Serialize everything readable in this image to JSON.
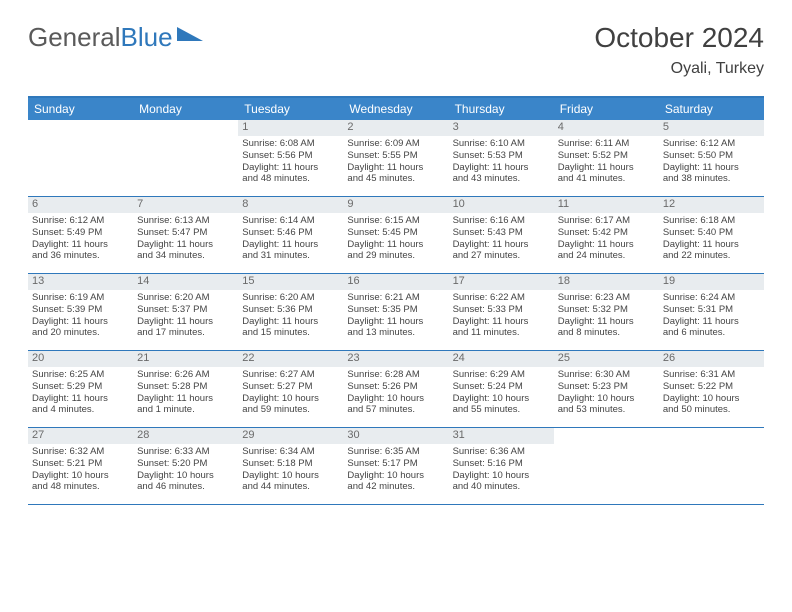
{
  "brand": {
    "part1": "General",
    "part2": "Blue"
  },
  "title": "October 2024",
  "location": "Oyali, Turkey",
  "colors": {
    "header_bg": "#3a85c9",
    "border": "#2f78bb",
    "daynum_bg": "#e8ecef",
    "text": "#444444"
  },
  "day_names": [
    "Sunday",
    "Monday",
    "Tuesday",
    "Wednesday",
    "Thursday",
    "Friday",
    "Saturday"
  ],
  "weeks": [
    [
      null,
      null,
      {
        "n": "1",
        "sr": "Sunrise: 6:08 AM",
        "ss": "Sunset: 5:56 PM",
        "d1": "Daylight: 11 hours",
        "d2": "and 48 minutes."
      },
      {
        "n": "2",
        "sr": "Sunrise: 6:09 AM",
        "ss": "Sunset: 5:55 PM",
        "d1": "Daylight: 11 hours",
        "d2": "and 45 minutes."
      },
      {
        "n": "3",
        "sr": "Sunrise: 6:10 AM",
        "ss": "Sunset: 5:53 PM",
        "d1": "Daylight: 11 hours",
        "d2": "and 43 minutes."
      },
      {
        "n": "4",
        "sr": "Sunrise: 6:11 AM",
        "ss": "Sunset: 5:52 PM",
        "d1": "Daylight: 11 hours",
        "d2": "and 41 minutes."
      },
      {
        "n": "5",
        "sr": "Sunrise: 6:12 AM",
        "ss": "Sunset: 5:50 PM",
        "d1": "Daylight: 11 hours",
        "d2": "and 38 minutes."
      }
    ],
    [
      {
        "n": "6",
        "sr": "Sunrise: 6:12 AM",
        "ss": "Sunset: 5:49 PM",
        "d1": "Daylight: 11 hours",
        "d2": "and 36 minutes."
      },
      {
        "n": "7",
        "sr": "Sunrise: 6:13 AM",
        "ss": "Sunset: 5:47 PM",
        "d1": "Daylight: 11 hours",
        "d2": "and 34 minutes."
      },
      {
        "n": "8",
        "sr": "Sunrise: 6:14 AM",
        "ss": "Sunset: 5:46 PM",
        "d1": "Daylight: 11 hours",
        "d2": "and 31 minutes."
      },
      {
        "n": "9",
        "sr": "Sunrise: 6:15 AM",
        "ss": "Sunset: 5:45 PM",
        "d1": "Daylight: 11 hours",
        "d2": "and 29 minutes."
      },
      {
        "n": "10",
        "sr": "Sunrise: 6:16 AM",
        "ss": "Sunset: 5:43 PM",
        "d1": "Daylight: 11 hours",
        "d2": "and 27 minutes."
      },
      {
        "n": "11",
        "sr": "Sunrise: 6:17 AM",
        "ss": "Sunset: 5:42 PM",
        "d1": "Daylight: 11 hours",
        "d2": "and 24 minutes."
      },
      {
        "n": "12",
        "sr": "Sunrise: 6:18 AM",
        "ss": "Sunset: 5:40 PM",
        "d1": "Daylight: 11 hours",
        "d2": "and 22 minutes."
      }
    ],
    [
      {
        "n": "13",
        "sr": "Sunrise: 6:19 AM",
        "ss": "Sunset: 5:39 PM",
        "d1": "Daylight: 11 hours",
        "d2": "and 20 minutes."
      },
      {
        "n": "14",
        "sr": "Sunrise: 6:20 AM",
        "ss": "Sunset: 5:37 PM",
        "d1": "Daylight: 11 hours",
        "d2": "and 17 minutes."
      },
      {
        "n": "15",
        "sr": "Sunrise: 6:20 AM",
        "ss": "Sunset: 5:36 PM",
        "d1": "Daylight: 11 hours",
        "d2": "and 15 minutes."
      },
      {
        "n": "16",
        "sr": "Sunrise: 6:21 AM",
        "ss": "Sunset: 5:35 PM",
        "d1": "Daylight: 11 hours",
        "d2": "and 13 minutes."
      },
      {
        "n": "17",
        "sr": "Sunrise: 6:22 AM",
        "ss": "Sunset: 5:33 PM",
        "d1": "Daylight: 11 hours",
        "d2": "and 11 minutes."
      },
      {
        "n": "18",
        "sr": "Sunrise: 6:23 AM",
        "ss": "Sunset: 5:32 PM",
        "d1": "Daylight: 11 hours",
        "d2": "and 8 minutes."
      },
      {
        "n": "19",
        "sr": "Sunrise: 6:24 AM",
        "ss": "Sunset: 5:31 PM",
        "d1": "Daylight: 11 hours",
        "d2": "and 6 minutes."
      }
    ],
    [
      {
        "n": "20",
        "sr": "Sunrise: 6:25 AM",
        "ss": "Sunset: 5:29 PM",
        "d1": "Daylight: 11 hours",
        "d2": "and 4 minutes."
      },
      {
        "n": "21",
        "sr": "Sunrise: 6:26 AM",
        "ss": "Sunset: 5:28 PM",
        "d1": "Daylight: 11 hours",
        "d2": "and 1 minute."
      },
      {
        "n": "22",
        "sr": "Sunrise: 6:27 AM",
        "ss": "Sunset: 5:27 PM",
        "d1": "Daylight: 10 hours",
        "d2": "and 59 minutes."
      },
      {
        "n": "23",
        "sr": "Sunrise: 6:28 AM",
        "ss": "Sunset: 5:26 PM",
        "d1": "Daylight: 10 hours",
        "d2": "and 57 minutes."
      },
      {
        "n": "24",
        "sr": "Sunrise: 6:29 AM",
        "ss": "Sunset: 5:24 PM",
        "d1": "Daylight: 10 hours",
        "d2": "and 55 minutes."
      },
      {
        "n": "25",
        "sr": "Sunrise: 6:30 AM",
        "ss": "Sunset: 5:23 PM",
        "d1": "Daylight: 10 hours",
        "d2": "and 53 minutes."
      },
      {
        "n": "26",
        "sr": "Sunrise: 6:31 AM",
        "ss": "Sunset: 5:22 PM",
        "d1": "Daylight: 10 hours",
        "d2": "and 50 minutes."
      }
    ],
    [
      {
        "n": "27",
        "sr": "Sunrise: 6:32 AM",
        "ss": "Sunset: 5:21 PM",
        "d1": "Daylight: 10 hours",
        "d2": "and 48 minutes."
      },
      {
        "n": "28",
        "sr": "Sunrise: 6:33 AM",
        "ss": "Sunset: 5:20 PM",
        "d1": "Daylight: 10 hours",
        "d2": "and 46 minutes."
      },
      {
        "n": "29",
        "sr": "Sunrise: 6:34 AM",
        "ss": "Sunset: 5:18 PM",
        "d1": "Daylight: 10 hours",
        "d2": "and 44 minutes."
      },
      {
        "n": "30",
        "sr": "Sunrise: 6:35 AM",
        "ss": "Sunset: 5:17 PM",
        "d1": "Daylight: 10 hours",
        "d2": "and 42 minutes."
      },
      {
        "n": "31",
        "sr": "Sunrise: 6:36 AM",
        "ss": "Sunset: 5:16 PM",
        "d1": "Daylight: 10 hours",
        "d2": "and 40 minutes."
      },
      null,
      null
    ]
  ]
}
